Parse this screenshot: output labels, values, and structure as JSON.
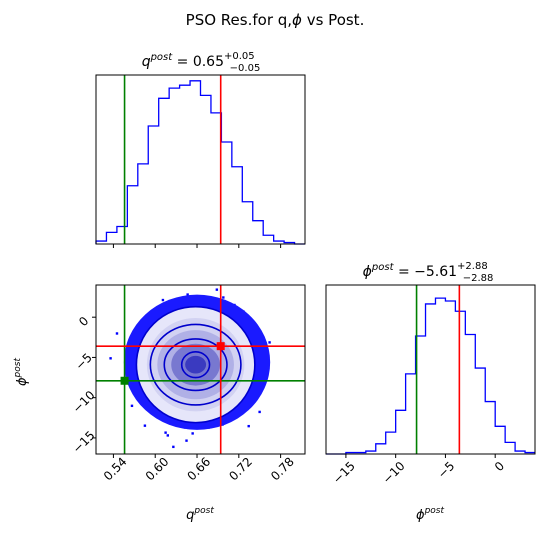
{
  "figure": {
    "title": "PSO Res.for q,$\\phi$ vs Post."
  },
  "chart_data": [
    {
      "type": "step-histogram",
      "panel": "top-left",
      "title_param": "q",
      "title_sup": "post",
      "title_value": "0.65",
      "title_plus": "+0.05",
      "title_minus": "−0.05",
      "xlim": [
        0.515,
        0.815
      ],
      "bins": [
        0.515,
        0.53,
        0.545,
        0.56,
        0.575,
        0.59,
        0.605,
        0.62,
        0.635,
        0.65,
        0.665,
        0.68,
        0.695,
        0.71,
        0.725,
        0.74,
        0.755,
        0.77,
        0.785,
        0.8,
        0.815
      ],
      "values": [
        2,
        8,
        12,
        40,
        55,
        81,
        100,
        107,
        109,
        112,
        102,
        90,
        70,
        53,
        29,
        16,
        6,
        2,
        1,
        0
      ],
      "ymax": 116,
      "lines": [
        {
          "x": 0.556,
          "color": "#008000"
        },
        {
          "x": 0.694,
          "color": "#ff0000"
        }
      ],
      "colors": {
        "hist": "#0000ff"
      }
    },
    {
      "type": "scatter-contour",
      "panel": "bottom-left",
      "xlabel": "q",
      "xlabel_sup": "post",
      "ylabel": "ϕ",
      "ylabel_sup": "post",
      "xlim": [
        0.515,
        0.815
      ],
      "ylim": [
        -17,
        4
      ],
      "xticks": [
        "0.54",
        "0.60",
        "0.66",
        "0.72",
        "0.78"
      ],
      "xtick_values": [
        0.54,
        0.6,
        0.66,
        0.72,
        0.78
      ],
      "yticks": [
        "0",
        "−5",
        "−10",
        "−15"
      ],
      "ytick_values": [
        0,
        -5,
        -10,
        -15
      ],
      "center": [
        0.66,
        -5.6
      ],
      "spread": [
        0.06,
        5.0
      ],
      "truth": {
        "x": 0.556,
        "y": -7.9,
        "color": "#008000"
      },
      "pso": {
        "x": 0.694,
        "y": -3.6,
        "color": "#ff0000"
      },
      "colors": {
        "points": "#0000ff"
      }
    },
    {
      "type": "step-histogram",
      "panel": "bottom-right",
      "title_param": "ϕ",
      "title_sup": "post",
      "title_value": "−5.61",
      "title_plus": "+2.88",
      "title_minus": "−2.88",
      "xlabel": "ϕ",
      "xlabel_sup": "post",
      "xlim": [
        -17,
        4
      ],
      "xticks": [
        "−15",
        "−10",
        "−5",
        "0"
      ],
      "xtick_values": [
        -15,
        -10,
        -5,
        0
      ],
      "bins": [
        -17,
        -16,
        -15,
        -14,
        -13,
        -12,
        -11,
        -10,
        -9,
        -8,
        -7,
        -6,
        -5,
        -4,
        -3,
        -2,
        -1,
        0,
        1,
        2,
        3,
        4
      ],
      "values": [
        0,
        0,
        1,
        1,
        2,
        7,
        15,
        30,
        55,
        81,
        103,
        107,
        105,
        98,
        82,
        59,
        36,
        19,
        8,
        2,
        1
      ],
      "ymax": 116,
      "lines": [
        {
          "x": -7.9,
          "color": "#008000"
        },
        {
          "x": -3.6,
          "color": "#ff0000"
        }
      ],
      "colors": {
        "hist": "#0000ff"
      }
    }
  ]
}
